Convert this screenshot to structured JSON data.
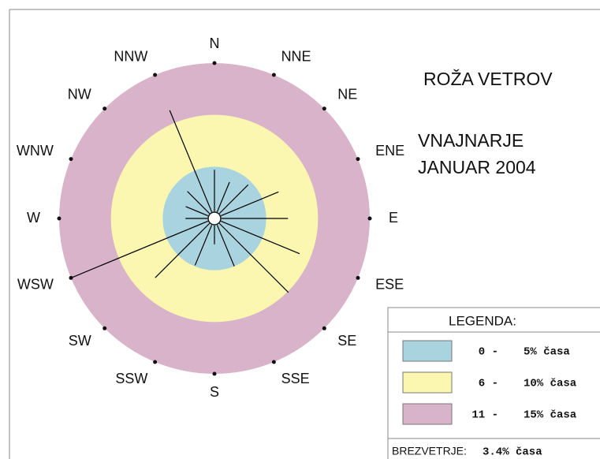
{
  "chart_data": {
    "type": "windrose",
    "title": "ROŽA VETROV",
    "subtitle": [
      "VNAJNARJE",
      "JANUAR 2004"
    ],
    "categories": [
      "N",
      "NNE",
      "NE",
      "ENE",
      "E",
      "ESE",
      "SE",
      "SSE",
      "S",
      "SSW",
      "SW",
      "WSW",
      "W",
      "WNW",
      "NW",
      "NNW"
    ],
    "values": [
      4.7,
      3.8,
      4.6,
      6.7,
      7.1,
      8.9,
      10.1,
      5.0,
      2.5,
      4.9,
      8.1,
      14.9,
      2.8,
      3.0,
      3.7,
      11.3
    ],
    "color": "#000000",
    "rlim": [
      0,
      15
    ],
    "rticks": [
      5,
      10,
      15
    ],
    "ring_colors": [
      "#a9d3df",
      "#fbf7b1",
      "#d9b3c9"
    ],
    "legend": {
      "title": "LEGENDA:",
      "items": [
        {
          "from": "0 -",
          "to": "5% časa"
        },
        {
          "from": "6 -",
          "to": "10% časa"
        },
        {
          "from": "11 -",
          "to": "15% časa"
        }
      ]
    },
    "calm": {
      "label": "BREZVETRJE:",
      "value": 3.4,
      "value_label": "3.4% časa"
    }
  }
}
